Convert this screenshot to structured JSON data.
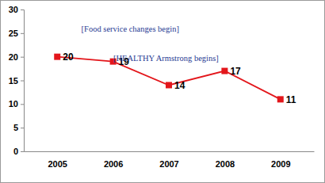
{
  "chart_data": {
    "type": "line",
    "categories": [
      "2005",
      "2006",
      "2007",
      "2008",
      "2009"
    ],
    "values": [
      20,
      19,
      14,
      17,
      11
    ],
    "color": "#e3161b",
    "marker": "square",
    "ylim": [
      0,
      30
    ],
    "yticks": [
      0,
      5,
      10,
      15,
      20,
      25,
      30
    ],
    "grid": false,
    "data_labels": true,
    "annotations": [
      "[Food service changes begin]",
      "[HEALTHY Armstrong begins]"
    ]
  }
}
